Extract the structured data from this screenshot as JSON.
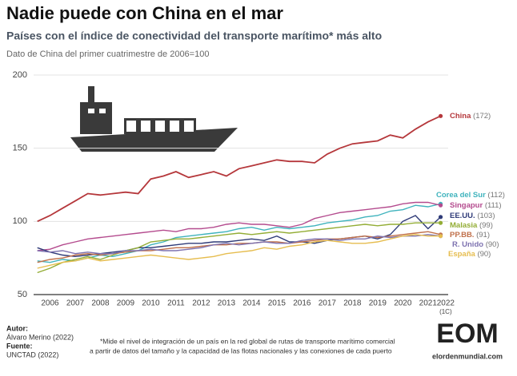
{
  "chart_data": {
    "type": "line",
    "title": "Nadie puede con China en el mar",
    "subtitle": "Países con el índice de conectividad del transporte marítimo* más alto",
    "note": "Dato de China del primer cuatrimestre de 2006=100",
    "x": [
      2006,
      2006.5,
      2007,
      2007.5,
      2008,
      2008.5,
      2009,
      2009.5,
      2010,
      2010.5,
      2011,
      2011.5,
      2012,
      2012.5,
      2013,
      2013.5,
      2014,
      2014.5,
      2015,
      2015.5,
      2016,
      2016.5,
      2017,
      2017.5,
      2018,
      2018.5,
      2019,
      2019.5,
      2020,
      2020.5,
      2021,
      2021.5,
      2022
    ],
    "xlim": [
      2005.85,
      2022.3
    ],
    "xticks": [
      {
        "value": 2006.5,
        "label": "2006"
      },
      {
        "value": 2007.5,
        "label": "2007"
      },
      {
        "value": 2008.5,
        "label": "2008"
      },
      {
        "value": 2009.5,
        "label": "2009"
      },
      {
        "value": 2010.5,
        "label": "2010"
      },
      {
        "value": 2011.5,
        "label": "2011"
      },
      {
        "value": 2012.5,
        "label": "2012"
      },
      {
        "value": 2013.5,
        "label": "2013"
      },
      {
        "value": 2014.5,
        "label": "2014"
      },
      {
        "value": 2015.5,
        "label": "2015"
      },
      {
        "value": 2016.5,
        "label": "2016"
      },
      {
        "value": 2017.5,
        "label": "2017"
      },
      {
        "value": 2018.5,
        "label": "2018"
      },
      {
        "value": 2019.5,
        "label": "2019"
      },
      {
        "value": 2020.5,
        "label": "2020"
      },
      {
        "value": 2021.5,
        "label": "2021"
      },
      {
        "value": 2022.2,
        "label": "2022"
      }
    ],
    "x_tick_note": "(1C)",
    "ylim": [
      50,
      200
    ],
    "yticks": [
      50,
      100,
      150,
      200
    ],
    "grid": true,
    "series": [
      {
        "name": "China",
        "end_label": "(172)",
        "color": "#b5373b",
        "values": [
          100,
          104,
          109,
          114,
          119,
          118,
          119,
          120,
          119,
          129,
          131,
          134,
          130,
          132,
          134,
          131,
          136,
          138,
          140,
          142,
          141,
          141,
          140,
          146,
          150,
          153,
          154,
          155,
          159,
          157,
          163,
          168,
          172
        ]
      },
      {
        "name": "Corea del Sur",
        "end_label": "(112)",
        "color": "#3fb3bd",
        "values": [
          73,
          72,
          74,
          73,
          75,
          77,
          76,
          78,
          80,
          84,
          86,
          89,
          90,
          91,
          92,
          93,
          95,
          96,
          94,
          96,
          95,
          96,
          97,
          99,
          100,
          101,
          103,
          104,
          107,
          108,
          111,
          110,
          112
        ]
      },
      {
        "name": "Singapur",
        "end_label": "(111)",
        "color": "#b44b8e",
        "values": [
          80,
          81,
          84,
          86,
          88,
          89,
          90,
          91,
          92,
          93,
          94,
          93,
          95,
          95,
          96,
          98,
          99,
          98,
          98,
          97,
          96,
          98,
          102,
          104,
          106,
          107,
          108,
          109,
          110,
          112,
          113,
          113,
          111
        ]
      },
      {
        "name": "EE.UU.",
        "end_label": "(103)",
        "color": "#2f3b78",
        "values": [
          82,
          79,
          77,
          76,
          77,
          78,
          79,
          80,
          82,
          82,
          83,
          84,
          85,
          85,
          86,
          86,
          87,
          88,
          87,
          90,
          86,
          86,
          85,
          87,
          88,
          89,
          90,
          88,
          91,
          100,
          104,
          95,
          103
        ]
      },
      {
        "name": "Malasia",
        "end_label": "(99)",
        "color": "#93ad35",
        "values": [
          65,
          68,
          72,
          74,
          76,
          74,
          77,
          80,
          82,
          86,
          87,
          88,
          88,
          89,
          90,
          91,
          92,
          91,
          92,
          93,
          92,
          93,
          94,
          95,
          96,
          97,
          98,
          97,
          98,
          98,
          99,
          99,
          99
        ]
      },
      {
        "name": "PP.BB.",
        "end_label": "(91)",
        "color": "#c0704a",
        "values": [
          72,
          74,
          75,
          77,
          78,
          77,
          78,
          79,
          80,
          80,
          81,
          82,
          82,
          83,
          84,
          84,
          85,
          85,
          86,
          86,
          85,
          86,
          87,
          88,
          88,
          89,
          90,
          89,
          90,
          91,
          92,
          93,
          91
        ]
      },
      {
        "name": "R. Unido",
        "end_label": "(90)",
        "color": "#7d72b0",
        "values": [
          80,
          79,
          80,
          78,
          79,
          78,
          78,
          80,
          80,
          81,
          80,
          80,
          81,
          82,
          84,
          85,
          84,
          85,
          86,
          85,
          85,
          87,
          88,
          88,
          87,
          88,
          88,
          90,
          89,
          90,
          90,
          91,
          90
        ]
      },
      {
        "name": "España",
        "end_label": "(90)",
        "color": "#e6bd4f",
        "values": [
          68,
          70,
          72,
          73,
          75,
          73,
          74,
          75,
          76,
          77,
          76,
          75,
          74,
          75,
          76,
          78,
          79,
          80,
          82,
          81,
          83,
          84,
          86,
          87,
          86,
          85,
          85,
          86,
          88,
          90,
          91,
          90,
          90
        ]
      }
    ]
  },
  "footer": {
    "author_label": "Autor:",
    "author": "Álvaro Merino (2022)",
    "source_label": "Fuente:",
    "source": "UNCTAD (2022)",
    "footnote_1": "*Mide el nivel de integración de un país en la red global de rutas de transporte marítimo comercial",
    "footnote_2": "a partir de datos del tamaño y la capacidad de las flotas nacionales y las conexiones de cada puerto",
    "logo": "EOM",
    "logo_url": "elordenmundial.com"
  }
}
